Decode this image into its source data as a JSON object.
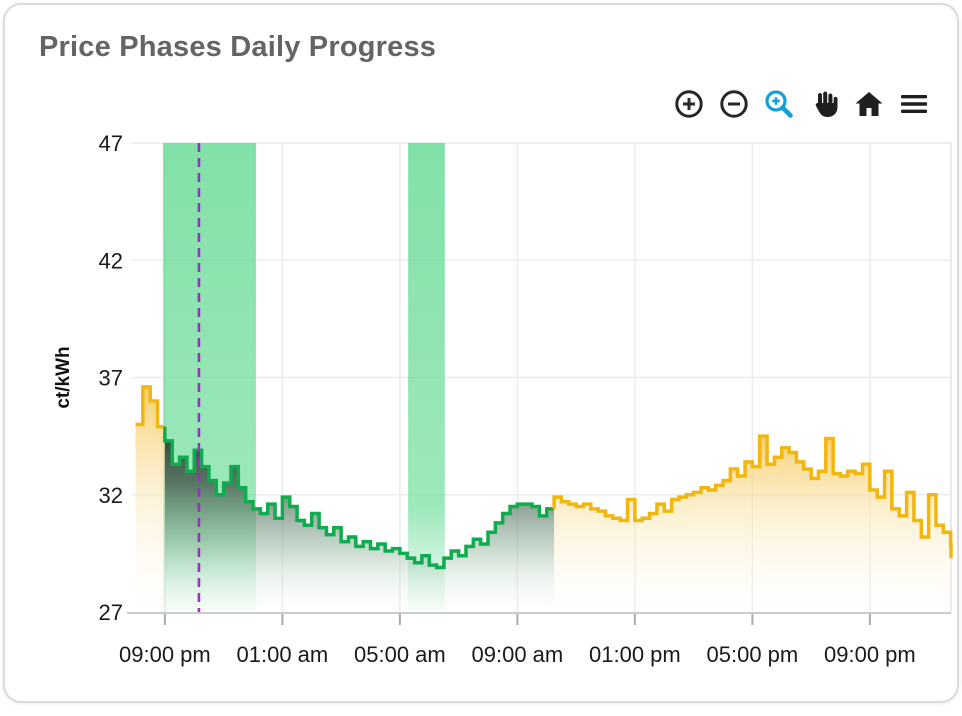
{
  "card": {
    "title": "Price Phases Daily Progress"
  },
  "toolbar": {
    "buttons": [
      {
        "name": "zoom-in",
        "icon": "plus-circle-icon",
        "color": "#262626"
      },
      {
        "name": "zoom-out",
        "icon": "minus-circle-icon",
        "color": "#262626"
      },
      {
        "name": "box-zoom",
        "icon": "magnifier-plus-icon",
        "color": "#149fd4",
        "active": true
      },
      {
        "name": "pan",
        "icon": "hand-icon",
        "color": "#1f1f1f"
      },
      {
        "name": "reset-axes",
        "icon": "home-icon",
        "color": "#1f1f1f"
      },
      {
        "name": "menu",
        "icon": "hamburger-icon",
        "color": "#1f1f1f"
      }
    ]
  },
  "chart_data": {
    "type": "area",
    "subtype": "step-area-phases",
    "title": "Price Phases Daily Progress",
    "ylabel": "ct/kWh",
    "xlabel": "",
    "y_axis": {
      "ticks": [
        47,
        42,
        37,
        32,
        27
      ],
      "range": [
        27,
        47
      ],
      "grid_values": [
        47,
        42,
        37,
        32
      ]
    },
    "x_axis": {
      "tick_labels": [
        "09:00 pm",
        "01:00 am",
        "05:00 am",
        "09:00 am",
        "01:00 pm",
        "05:00 pm",
        "09:00 pm"
      ],
      "tick_hour_offsets": [
        1,
        5,
        9,
        13,
        17,
        21,
        25
      ],
      "range_hour_offsets": [
        -0.15,
        27.76
      ]
    },
    "step_minutes": 15,
    "values": [
      35.0,
      36.6,
      36.0,
      34.9,
      34.3,
      33.3,
      33.6,
      33.0,
      33.9,
      33.2,
      32.6,
      32.0,
      32.5,
      33.2,
      32.3,
      31.7,
      31.4,
      31.2,
      31.6,
      31.0,
      31.9,
      31.5,
      30.9,
      30.7,
      31.2,
      30.6,
      30.3,
      30.6,
      30.0,
      30.2,
      29.8,
      30.0,
      29.7,
      29.9,
      29.6,
      29.7,
      29.5,
      29.3,
      29.1,
      29.4,
      29.0,
      28.9,
      29.3,
      29.6,
      29.4,
      29.8,
      30.1,
      29.9,
      30.4,
      30.8,
      31.2,
      31.5,
      31.6,
      31.6,
      31.5,
      31.1,
      31.4,
      31.9,
      31.7,
      31.6,
      31.5,
      31.6,
      31.4,
      31.3,
      31.1,
      31.0,
      30.9,
      31.8,
      30.9,
      31.0,
      31.2,
      31.6,
      31.3,
      31.8,
      31.9,
      32.0,
      32.1,
      32.3,
      32.2,
      32.4,
      32.6,
      33.1,
      32.8,
      33.4,
      33.2,
      34.5,
      33.3,
      33.6,
      34.0,
      33.8,
      33.4,
      33.1,
      32.7,
      33.0,
      34.4,
      32.9,
      32.8,
      33.0,
      32.9,
      33.3,
      32.2,
      31.9,
      33.0,
      31.4,
      31.1,
      32.1,
      30.9,
      30.2,
      32.0,
      30.7,
      30.4,
      29.9
    ],
    "end_drop_value": 29.3,
    "phases": [
      {
        "name": "high-price",
        "fill": "yellow",
        "color": "#f2b60d",
        "start": 0,
        "end": 3
      },
      {
        "name": "low-price",
        "fill": "green",
        "color": "#0fab4f",
        "start": 4,
        "end": 56
      },
      {
        "name": "high-price",
        "fill": "yellow",
        "color": "#f2b60d",
        "start": 57,
        "end": 111
      }
    ],
    "highlight_bands": [
      {
        "name": "cheap-window",
        "start_hour": 0.94,
        "end_hour": 4.1,
        "color": "#66da94"
      },
      {
        "name": "cheap-window",
        "start_hour": 9.28,
        "end_hour": 10.53,
        "color": "#66da94"
      }
    ],
    "now_line": {
      "hour_offset": 2.16,
      "color": "#9b30c0",
      "style": "dashed"
    },
    "layout": {
      "grid": true,
      "legend": false
    }
  }
}
